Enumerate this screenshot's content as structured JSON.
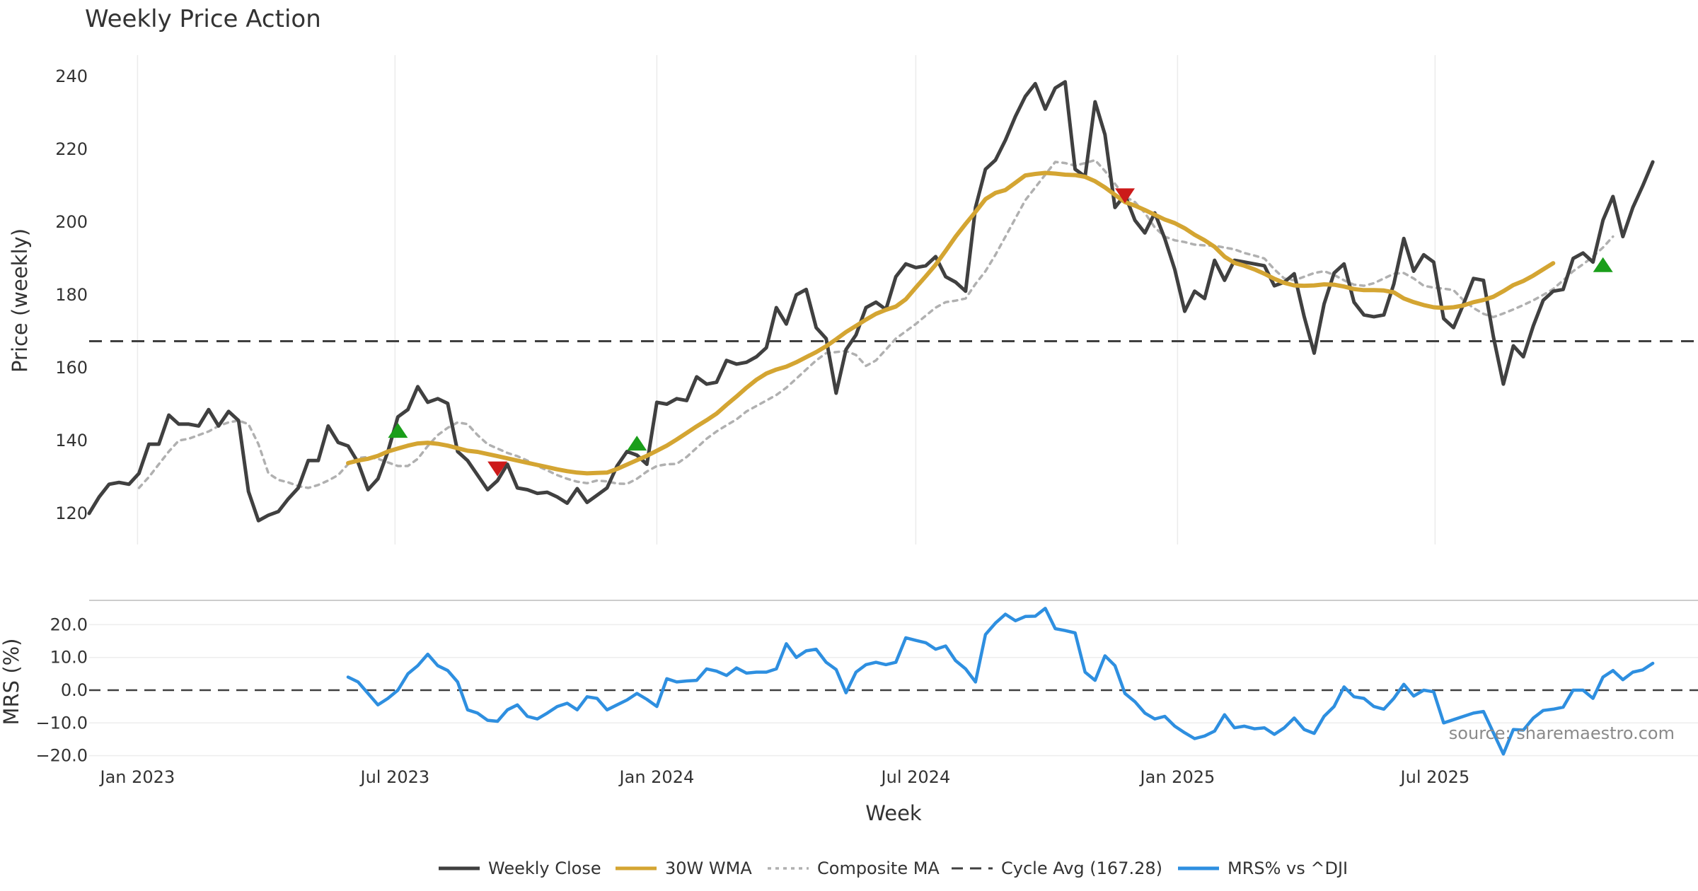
{
  "chart_data": [
    {
      "type": "line",
      "title": "Weekly Price Action",
      "xlabel": "",
      "ylabel": "Price (weekly)",
      "ylim": [
        115,
        245
      ],
      "yticks": [
        120,
        140,
        160,
        180,
        200,
        220,
        240
      ],
      "xlim": [
        "2022-11-28",
        "2025-11-24"
      ],
      "xticks": [
        {
          "date": "2023-01-01",
          "label": "Jan 2023"
        },
        {
          "date": "2023-07-01",
          "label": "Jul 2023"
        },
        {
          "date": "2024-01-01",
          "label": "Jan 2024"
        },
        {
          "date": "2024-07-01",
          "label": "Jul 2024"
        },
        {
          "date": "2025-01-01",
          "label": "Jan 2025"
        },
        {
          "date": "2025-07-01",
          "label": "Jul 2025"
        }
      ],
      "cycle_average": 167.28,
      "series": [
        {
          "name": "Weekly Close",
          "color": "#404040",
          "start": "2022-11-28",
          "step_days": 7,
          "values": [
            120,
            124.5,
            128,
            128.5,
            128,
            131,
            139,
            139,
            147,
            144.5,
            144.5,
            144,
            148.5,
            144,
            148,
            145.5,
            126,
            118,
            119.5,
            120.5,
            124,
            127,
            134.5,
            134.5,
            144,
            139.5,
            138.5,
            134,
            126.5,
            129.5,
            137,
            146.5,
            148.5,
            154.8,
            150.5,
            151.5,
            150.2,
            137,
            134.5,
            130.5,
            126.5,
            129,
            133.5,
            127,
            126.5,
            125.5,
            125.8,
            124.5,
            122.8,
            126.8,
            123,
            125,
            127,
            133,
            137,
            136,
            133.5,
            150.5,
            150,
            151.5,
            151,
            157.5,
            155.5,
            156,
            162,
            161,
            161.5,
            163,
            165.5,
            176.5,
            172,
            180,
            181.5,
            171,
            168,
            153,
            165,
            169,
            176.5,
            178,
            176,
            185,
            188.5,
            187.5,
            188,
            190.5,
            185,
            183.5,
            181,
            204,
            214.5,
            217,
            222.5,
            229,
            234.5,
            238,
            231,
            236.8,
            238.5,
            214.5,
            212.5,
            233,
            224,
            204,
            207.5,
            200.5,
            197,
            202.5,
            195.5,
            187,
            175.5,
            181,
            179,
            189.5,
            184,
            189.5,
            189,
            188.5,
            188,
            182.5,
            183.5,
            185.8,
            174,
            164,
            177.5,
            186,
            188.5,
            178,
            174.5,
            174,
            174.5,
            183,
            195.5,
            186.5,
            191,
            189,
            173.5,
            171,
            177.5,
            184.5,
            184,
            168.5,
            155.5,
            166,
            163,
            171.5,
            178.5,
            181,
            181.5,
            190,
            191.5,
            189,
            200.5,
            207,
            196,
            204,
            210,
            216.5
          ]
        },
        {
          "name": "30W WMA",
          "color": "#d4a532",
          "start": "2023-05-29",
          "step_days": 7,
          "values": [
            133.8,
            134.5,
            135,
            135.8,
            137,
            137.8,
            138.6,
            139.2,
            139.4,
            139.1,
            138.6,
            137.9,
            137.2,
            136.9,
            136.3,
            135.7,
            135.1,
            134.5,
            133.9,
            133.3,
            132.7,
            132.1,
            131.6,
            131.2,
            131.0,
            131.1,
            131.2,
            132.2,
            133.4,
            134.6,
            135.8,
            137.2,
            138.6,
            140.3,
            142.1,
            143.9,
            145.6,
            147.4,
            149.8,
            152.1,
            154.5,
            156.7,
            158.4,
            159.5,
            160.3,
            161.5,
            162.9,
            164.3,
            165.9,
            167.8,
            169.8,
            171.5,
            173.2,
            174.8,
            175.9,
            176.8,
            178.8,
            182,
            185.1,
            188.3,
            192.1,
            196,
            199.5,
            202.8,
            206.3,
            208,
            208.8,
            210.8,
            212.8,
            213.2,
            213.5,
            213.3,
            213,
            212.9,
            212.4,
            211.2,
            209.5,
            207.5,
            205.5,
            204.5,
            203.3,
            202,
            200.7,
            199.7,
            198.3,
            196.5,
            195,
            193.2,
            190.5,
            188.8,
            188,
            187,
            185.8,
            184.4,
            183.3,
            182.6,
            182.5,
            182.6,
            182.9,
            182.8,
            182.3,
            181.6,
            181.3,
            181.3,
            181.2,
            180.7,
            179,
            178,
            177.2,
            176.6,
            176.4,
            176.6,
            177.1,
            178,
            178.6,
            179.5,
            181,
            182.7,
            183.8,
            185.3,
            187,
            188.7
          ]
        },
        {
          "name": "Composite MA",
          "color": "#b0b0b0",
          "start": "2023-01-02",
          "step_days": 7,
          "values": [
            127,
            130,
            133.5,
            137,
            140,
            140.5,
            141.5,
            142.5,
            144,
            145,
            145.5,
            144.5,
            139,
            131,
            129.2,
            128.5,
            127.5,
            127,
            127.8,
            129,
            130.5,
            133.5,
            135.2,
            135.5,
            135,
            134,
            133,
            133,
            135,
            138.5,
            141.5,
            143.5,
            145,
            144.5,
            141.5,
            139,
            137.8,
            136.6,
            135.7,
            134.5,
            133,
            131.8,
            130.5,
            129.5,
            128.7,
            128.3,
            129,
            128.8,
            128.2,
            128.1,
            129.5,
            131.5,
            133,
            133.5,
            133.6,
            135.5,
            138,
            140.5,
            142.5,
            144.2,
            145.8,
            148,
            149.5,
            151,
            152.5,
            154.5,
            157,
            159.5,
            162,
            164,
            164.3,
            164.6,
            163.5,
            160.5,
            162,
            165,
            168,
            170,
            172,
            174.3,
            176.5,
            178,
            178.4,
            179,
            183,
            186.5,
            191,
            196,
            201,
            206,
            209.5,
            213,
            216.5,
            216.2,
            215.5,
            216.2,
            217,
            214,
            210.5,
            207,
            205.5,
            202.5,
            198.5,
            196,
            195,
            194.5,
            193.8,
            193.6,
            193.5,
            193,
            192.5,
            191.5,
            190.8,
            190,
            187,
            184.5,
            184,
            185,
            186,
            186.5,
            185.5,
            184,
            182.8,
            182.5,
            183.2,
            184.5,
            185.8,
            186,
            184.5,
            182.5,
            182,
            181.7,
            181.3,
            178.5,
            176.4,
            174.8,
            173.9,
            174.9,
            176,
            177.2,
            178.5,
            180,
            181.6,
            184,
            186.5,
            188.4,
            190.5,
            193,
            196
          ]
        }
      ],
      "markers": [
        {
          "type": "buy",
          "symbol": "triangle-up",
          "color": "#1a9e1a",
          "date": "2023-07-03",
          "value": 142.5
        },
        {
          "type": "sell",
          "symbol": "triangle-down",
          "color": "#cc1a1a",
          "date": "2023-09-11",
          "value": 132.5
        },
        {
          "type": "buy",
          "symbol": "triangle-up",
          "color": "#1a9e1a",
          "date": "2023-12-18",
          "value": 139
        },
        {
          "type": "sell",
          "symbol": "triangle-down",
          "color": "#cc1a1a",
          "date": "2024-11-25",
          "value": 207.5
        },
        {
          "type": "buy",
          "symbol": "triangle-up",
          "color": "#1a9e1a",
          "date": "2025-10-27",
          "value": 188
        }
      ]
    },
    {
      "type": "line",
      "title": "",
      "xlabel": "Week",
      "ylabel": "MRS (%)",
      "ylim": [
        -21,
        27
      ],
      "yticks": [
        -20,
        -10,
        0,
        10,
        20
      ],
      "ytick_labels": [
        "−20.0",
        "−10.0",
        "0.0",
        "10.0",
        "20.0"
      ],
      "zero_line": true,
      "series": [
        {
          "name": "MRS% vs ^DJI",
          "color": "#2e8fe0",
          "start": "2023-05-29",
          "step_days": 7,
          "values": [
            4,
            2.5,
            -1,
            -4.5,
            -2.5,
            0,
            5,
            7.5,
            11,
            7.5,
            6,
            2.5,
            -6,
            -7,
            -9.2,
            -9.5,
            -6,
            -4.5,
            -8,
            -8.8,
            -7,
            -5,
            -4,
            -6,
            -2,
            -2.5,
            -6,
            -4.5,
            -3,
            -1,
            -2.8,
            -5,
            3.5,
            2.5,
            2.8,
            3,
            6.5,
            5.8,
            4.5,
            6.8,
            5.2,
            5.5,
            5.5,
            6.5,
            14.2,
            10,
            12,
            12.5,
            8.5,
            6.3,
            -0.8,
            5.5,
            7.8,
            8.5,
            7.8,
            8.5,
            16,
            15.2,
            14.5,
            12.5,
            13.5,
            9,
            6.5,
            2.5,
            17,
            20.5,
            23.2,
            21.2,
            22.5,
            22.6,
            25,
            18.8,
            18.2,
            17.5,
            5.5,
            3,
            10.5,
            7.5,
            -1,
            -3.5,
            -7,
            -8.8,
            -8,
            -11,
            -13,
            -14.8,
            -14,
            -12.5,
            -7.5,
            -11.5,
            -11,
            -11.8,
            -11.5,
            -13.5,
            -11.5,
            -8.5,
            -12,
            -13.2,
            -8,
            -5,
            1,
            -2,
            -2.5,
            -5,
            -5.8,
            -2.5,
            1.8,
            -1.8,
            0,
            -0.5,
            -10,
            -9,
            -8,
            -7,
            -6.5,
            -13,
            -19.5,
            -12,
            -12.2,
            -8.5,
            -6.2,
            -5.8,
            -5.2,
            0,
            0,
            -2.5,
            4,
            6,
            3.2,
            5.5,
            6.2,
            8.2
          ]
        }
      ]
    }
  ],
  "labels": {
    "x_axis_title": "Week",
    "source_note": "source: sharemaestro.com",
    "cycle_avg_legend": "Cycle Avg (167.28)"
  },
  "legend": [
    {
      "label": "Weekly Close",
      "style": "solid",
      "color": "#404040"
    },
    {
      "label": "30W WMA",
      "style": "solid",
      "color": "#d4a532"
    },
    {
      "label": "Composite MA",
      "style": "dotted",
      "color": "#b0b0b0"
    },
    {
      "label": "Cycle Avg (167.28)",
      "style": "dashed",
      "color": "#404040"
    },
    {
      "label": "MRS% vs ^DJI",
      "style": "solid",
      "color": "#2e8fe0"
    }
  ]
}
